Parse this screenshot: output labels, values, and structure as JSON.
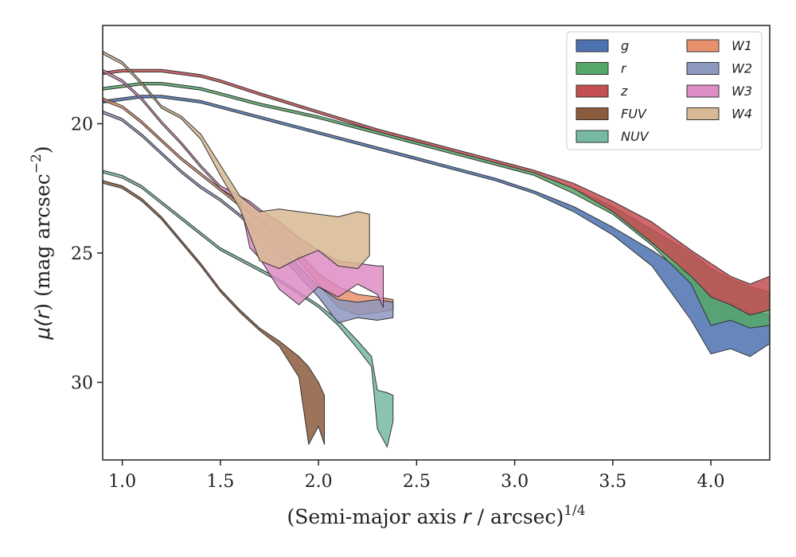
{
  "chart_data": {
    "type": "area",
    "title": "",
    "xlabel": "(Semi-major axis r / arcsec)^1/4",
    "xlabel_parts": {
      "prefix": "(Semi-major axis ",
      "var": "r",
      "middle": " / arcsec)",
      "sup": "1/4"
    },
    "ylabel": "μ(r) (mag arcsec^−2)",
    "ylabel_parts": {
      "mu": "μ(",
      "var": "r",
      "rest": ") (mag arcsec",
      "sup": "−2",
      "close": ")"
    },
    "xlim": [
      0.9,
      4.3
    ],
    "ylim": [
      33.0,
      16.2
    ],
    "y_inverted": true,
    "xticks": [
      1.0,
      1.5,
      2.0,
      2.5,
      3.0,
      3.5,
      4.0
    ],
    "xtick_labels": [
      "1.0",
      "1.5",
      "2.0",
      "2.5",
      "3.0",
      "3.5",
      "4.0"
    ],
    "yticks": [
      20,
      25,
      30
    ],
    "ytick_labels": [
      "20",
      "25",
      "30"
    ],
    "grid": false,
    "legend_position": "top-right",
    "legend_columns": 2,
    "series": [
      {
        "name": "g",
        "color": "#4c72b0",
        "x": [
          0.9,
          1.0,
          1.1,
          1.2,
          1.3,
          1.4,
          1.5,
          1.7,
          2.0,
          2.3,
          2.6,
          2.9,
          3.1,
          3.3,
          3.5,
          3.7,
          3.9,
          4.0,
          4.1,
          4.2,
          4.3
        ],
        "y_bright": [
          19.1,
          19.0,
          18.9,
          18.9,
          19.0,
          19.1,
          19.3,
          19.7,
          20.3,
          20.9,
          21.5,
          22.1,
          22.6,
          23.2,
          24.0,
          24.9,
          25.9,
          26.6,
          26.9,
          27.2,
          27.4
        ],
        "y_faint": [
          19.2,
          19.1,
          19.0,
          19.0,
          19.1,
          19.2,
          19.4,
          19.8,
          20.4,
          21.0,
          21.6,
          22.2,
          22.7,
          23.4,
          24.3,
          25.5,
          27.6,
          28.9,
          28.7,
          29.0,
          28.5
        ]
      },
      {
        "name": "r",
        "color": "#55a868",
        "x": [
          0.9,
          1.0,
          1.1,
          1.2,
          1.3,
          1.4,
          1.5,
          1.7,
          2.0,
          2.3,
          2.6,
          2.9,
          3.1,
          3.3,
          3.5,
          3.7,
          3.9,
          4.0,
          4.1,
          4.2,
          4.3
        ],
        "y_bright": [
          18.6,
          18.5,
          18.4,
          18.4,
          18.5,
          18.6,
          18.8,
          19.2,
          19.7,
          20.3,
          20.9,
          21.5,
          21.9,
          22.5,
          23.2,
          24.1,
          25.0,
          25.6,
          26.0,
          26.3,
          26.5
        ],
        "y_faint": [
          18.7,
          18.6,
          18.5,
          18.5,
          18.6,
          18.7,
          18.9,
          19.3,
          19.8,
          20.4,
          21.0,
          21.6,
          22.0,
          22.7,
          23.5,
          24.7,
          26.2,
          27.8,
          27.6,
          27.9,
          27.8
        ]
      },
      {
        "name": "z",
        "color": "#c44e52",
        "x": [
          0.9,
          1.0,
          1.1,
          1.2,
          1.3,
          1.4,
          1.5,
          1.7,
          2.0,
          2.3,
          2.6,
          2.9,
          3.1,
          3.3,
          3.5,
          3.7,
          3.9,
          4.0,
          4.1,
          4.2,
          4.3
        ],
        "y_bright": [
          18.0,
          17.9,
          17.9,
          17.9,
          18.0,
          18.1,
          18.3,
          18.8,
          19.5,
          20.2,
          20.8,
          21.4,
          21.8,
          22.3,
          23.0,
          23.8,
          24.9,
          25.4,
          25.9,
          26.2,
          25.9
        ],
        "y_faint": [
          18.1,
          18.0,
          18.0,
          18.0,
          18.1,
          18.2,
          18.4,
          18.9,
          19.6,
          20.3,
          20.9,
          21.5,
          21.9,
          22.5,
          23.4,
          24.6,
          25.9,
          26.7,
          27.0,
          27.4,
          27.2
        ]
      },
      {
        "name": "FUV",
        "color": "#8c5a3c",
        "x": [
          0.9,
          1.0,
          1.1,
          1.2,
          1.3,
          1.4,
          1.5,
          1.6,
          1.7,
          1.8,
          1.9,
          1.95,
          2.0,
          2.03
        ],
        "y_bright": [
          22.2,
          22.4,
          22.9,
          23.6,
          24.5,
          25.4,
          26.4,
          27.2,
          27.9,
          28.4,
          29.0,
          29.4,
          30.0,
          30.5
        ],
        "y_faint": [
          22.3,
          22.5,
          23.0,
          23.7,
          24.6,
          25.5,
          26.5,
          27.3,
          28.0,
          28.6,
          29.8,
          32.4,
          31.7,
          32.4
        ]
      },
      {
        "name": "NUV",
        "color": "#76b9a5",
        "x": [
          0.9,
          1.0,
          1.1,
          1.2,
          1.3,
          1.4,
          1.5,
          1.6,
          1.7,
          1.8,
          1.9,
          2.0,
          2.1,
          2.2,
          2.27,
          2.3,
          2.35,
          2.38
        ],
        "y_bright": [
          21.8,
          22.0,
          22.4,
          23.0,
          23.6,
          24.2,
          24.8,
          25.2,
          25.6,
          26.0,
          26.5,
          27.0,
          27.6,
          28.4,
          29.0,
          30.3,
          30.4,
          30.5
        ],
        "y_faint": [
          21.9,
          22.1,
          22.5,
          23.1,
          23.7,
          24.3,
          24.9,
          25.3,
          25.7,
          26.1,
          26.6,
          27.1,
          27.8,
          28.7,
          29.4,
          31.8,
          32.5,
          31.5
        ]
      },
      {
        "name": "W1",
        "color": "#e8916d",
        "x": [
          0.9,
          1.0,
          1.1,
          1.2,
          1.3,
          1.4,
          1.5,
          1.6,
          1.7,
          1.8,
          1.9,
          2.0,
          2.1,
          2.2,
          2.3,
          2.38
        ],
        "y_bright": [
          19.0,
          19.3,
          19.9,
          20.6,
          21.3,
          21.9,
          22.5,
          23.1,
          23.7,
          24.3,
          25.0,
          25.8,
          26.3,
          26.6,
          26.7,
          26.8
        ],
        "y_faint": [
          19.1,
          19.4,
          20.0,
          20.7,
          21.4,
          22.0,
          22.6,
          23.2,
          23.8,
          24.5,
          25.3,
          26.2,
          27.1,
          27.4,
          27.3,
          27.2
        ]
      },
      {
        "name": "W2",
        "color": "#8d98c0",
        "x": [
          0.9,
          1.0,
          1.1,
          1.2,
          1.3,
          1.4,
          1.5,
          1.6,
          1.7,
          1.8,
          1.9,
          2.0,
          2.1,
          2.2,
          2.3,
          2.38
        ],
        "y_bright": [
          19.5,
          19.8,
          20.4,
          21.1,
          21.8,
          22.4,
          22.9,
          23.5,
          24.1,
          24.7,
          25.5,
          26.3,
          26.8,
          26.9,
          26.8,
          26.9
        ],
        "y_faint": [
          19.6,
          19.9,
          20.5,
          21.2,
          21.9,
          22.5,
          23.0,
          23.6,
          24.3,
          25.0,
          25.9,
          26.7,
          27.7,
          27.5,
          27.6,
          27.5
        ]
      },
      {
        "name": "W3",
        "color": "#dd8cc4",
        "x": [
          0.9,
          1.0,
          1.1,
          1.2,
          1.3,
          1.4,
          1.5,
          1.6,
          1.65,
          1.7,
          1.8,
          1.9,
          2.0,
          2.1,
          2.2,
          2.3,
          2.33
        ],
        "y_bright": [
          17.9,
          18.3,
          19.0,
          19.9,
          20.7,
          21.6,
          22.4,
          22.8,
          23.0,
          23.3,
          23.8,
          24.4,
          24.9,
          25.3,
          25.4,
          25.5,
          25.5
        ],
        "y_faint": [
          18.0,
          18.4,
          19.1,
          20.0,
          20.8,
          21.7,
          22.5,
          23.0,
          24.8,
          25.2,
          26.4,
          27.0,
          26.3,
          26.7,
          26.2,
          26.6,
          27.1
        ]
      },
      {
        "name": "W4",
        "color": "#d8b993",
        "x": [
          0.9,
          1.0,
          1.1,
          1.2,
          1.3,
          1.4,
          1.5,
          1.6,
          1.7,
          1.8,
          1.9,
          2.0,
          2.1,
          2.2,
          2.26
        ],
        "y_bright": [
          17.2,
          17.6,
          18.4,
          19.3,
          19.7,
          20.4,
          21.6,
          22.8,
          23.4,
          23.3,
          23.4,
          23.5,
          23.6,
          23.4,
          23.5
        ],
        "y_faint": [
          17.3,
          17.7,
          18.5,
          19.4,
          19.8,
          20.6,
          22.0,
          23.3,
          25.3,
          25.6,
          25.2,
          24.9,
          25.5,
          25.6,
          25.1
        ]
      }
    ]
  }
}
